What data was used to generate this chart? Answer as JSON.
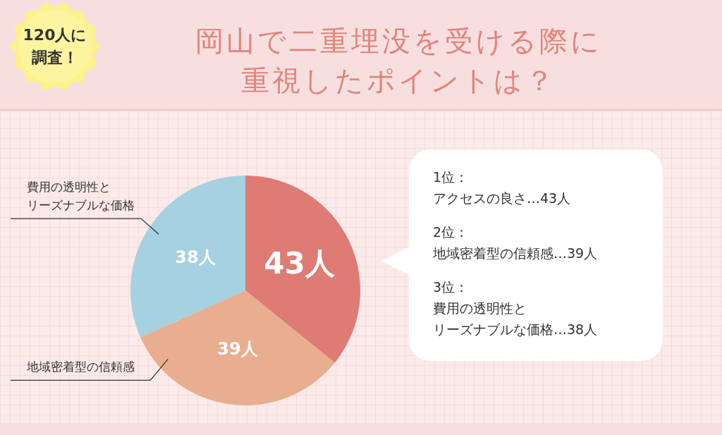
{
  "chart_data": {
    "type": "pie",
    "title": "岡山で二重埋没を受ける際に重視したポイントは？",
    "categories": [
      null,
      "地域密着型の信頼感",
      "費用の透明性とリーズナブルな価格"
    ],
    "values": [
      43,
      39,
      38
    ],
    "colors": [
      "#de7b74",
      "#e9ae8f",
      "#a5d1e0"
    ],
    "value_labels": [
      "43人",
      "39人",
      "38人"
    ],
    "annotations": [
      "120人に調査！",
      "1位：",
      "アクセスの良さ…43人",
      "2位：",
      "地域密着型の信頼感…39人",
      "3位：",
      "費用の透明性と",
      "リーズナブルな価格…38人"
    ]
  }
}
